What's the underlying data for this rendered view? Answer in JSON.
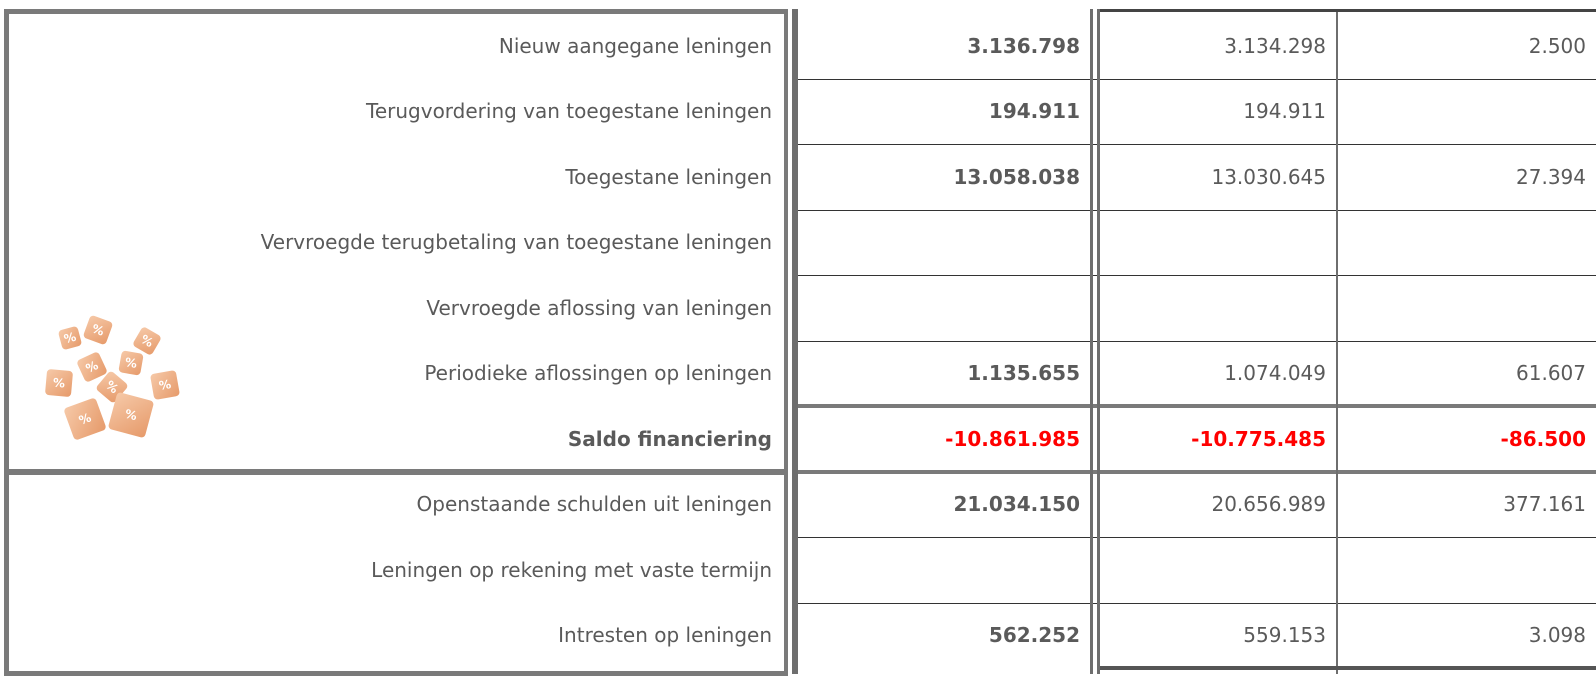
{
  "table": {
    "rows": [
      {
        "label": "Nieuw aangegane leningen",
        "total": "3.136.798",
        "a": "3.134.298",
        "b": "2.500"
      },
      {
        "label": "Terugvordering van toegestane leningen",
        "total": "194.911",
        "a": "194.911",
        "b": null
      },
      {
        "label": "Toegestane leningen",
        "total": "13.058.038",
        "a": "13.030.645",
        "b": "27.394"
      },
      {
        "label": "Vervroegde terugbetaling van toegestane leningen",
        "total": null,
        "a": null,
        "b": null
      },
      {
        "label": "Vervroegde aflossing van leningen",
        "total": null,
        "a": null,
        "b": null
      },
      {
        "label": "Periodieke aflossingen op leningen",
        "total": "1.135.655",
        "a": "1.074.049",
        "b": "61.607"
      },
      {
        "label": "Saldo financiering",
        "total": "-10.861.985",
        "a": "-10.775.485",
        "b": "-86.500"
      },
      {
        "label": "Openstaande schulden uit leningen",
        "total": "21.034.150",
        "a": "20.656.989",
        "b": "377.161"
      },
      {
        "label": "Leningen op rekening met vaste termijn",
        "total": null,
        "a": null,
        "b": null
      },
      {
        "label": "Intresten op leningen",
        "total": "562.252",
        "a": "559.153",
        "b": "3.098"
      }
    ]
  }
}
